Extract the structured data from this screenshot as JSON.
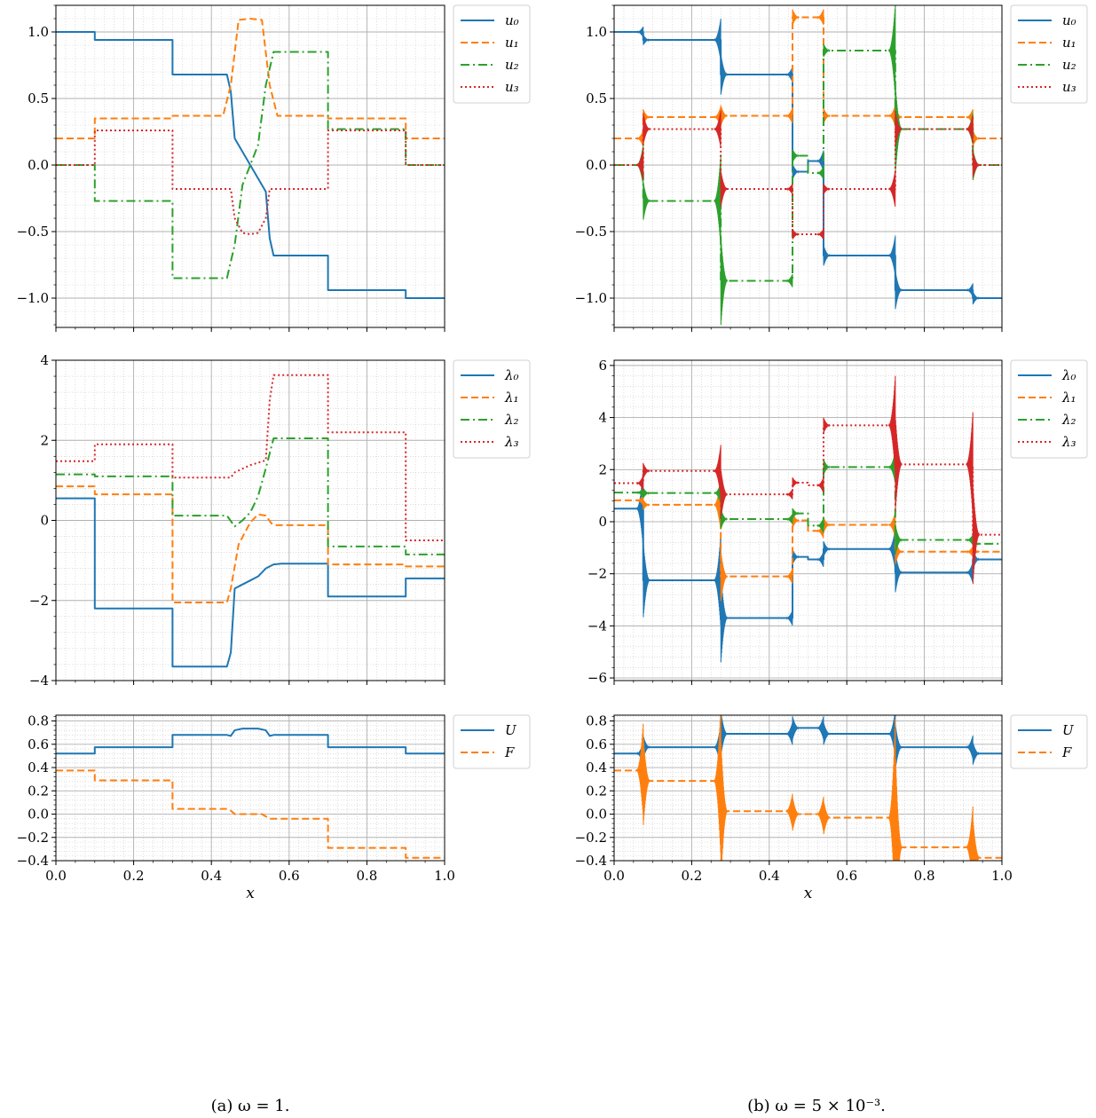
{
  "colors": {
    "c0": "#1f77b4",
    "c1": "#ff7f0e",
    "c2": "#2ca02c",
    "c3": "#d62728"
  },
  "captions": {
    "a": "(a) ω = 1.",
    "b": "(b) ω = 5 × 10⁻³."
  },
  "chart_data": [
    {
      "id": "a-u",
      "type": "line",
      "column": "a",
      "row": 0,
      "xlabel": "",
      "ylabel": "",
      "xlim": [
        0,
        1
      ],
      "ylim": [
        -1.22,
        1.2
      ],
      "yticks": [
        -1.0,
        -0.5,
        0.0,
        0.5,
        1.0
      ],
      "ytick_labels": [
        "−1.0",
        "−0.5",
        "0.0",
        "0.5",
        "1.0"
      ],
      "grid": true,
      "minor_grid": true,
      "legend": "outside-right",
      "series": [
        {
          "name": "u₀",
          "style": "solid",
          "color": "#1f77b4",
          "x": [
            0,
            0.1,
            0.1,
            0.3,
            0.3,
            0.44,
            0.45,
            0.46,
            0.48,
            0.5,
            0.52,
            0.54,
            0.55,
            0.56,
            0.7,
            0.7,
            0.9,
            0.9,
            1.0
          ],
          "y": [
            1.0,
            1.0,
            0.94,
            0.94,
            0.68,
            0.68,
            0.55,
            0.2,
            0.1,
            0.0,
            -0.1,
            -0.2,
            -0.55,
            -0.68,
            -0.68,
            -0.94,
            -0.94,
            -1.0,
            -1.0
          ]
        },
        {
          "name": "u₁",
          "style": "dashed",
          "color": "#ff7f0e",
          "x": [
            0,
            0.1,
            0.1,
            0.3,
            0.3,
            0.43,
            0.45,
            0.47,
            0.5,
            0.53,
            0.55,
            0.57,
            0.7,
            0.7,
            0.9,
            0.9,
            1.0
          ],
          "y": [
            0.2,
            0.2,
            0.35,
            0.35,
            0.37,
            0.37,
            0.6,
            1.09,
            1.1,
            1.09,
            0.6,
            0.37,
            0.37,
            0.35,
            0.35,
            0.2,
            0.2
          ]
        },
        {
          "name": "u₂",
          "style": "dashdot",
          "color": "#2ca02c",
          "x": [
            0,
            0.1,
            0.1,
            0.3,
            0.3,
            0.44,
            0.46,
            0.48,
            0.5,
            0.52,
            0.54,
            0.56,
            0.7,
            0.7,
            0.9,
            0.9,
            1.0
          ],
          "y": [
            0.0,
            0.0,
            -0.27,
            -0.27,
            -0.85,
            -0.85,
            -0.6,
            -0.15,
            0.0,
            0.15,
            0.6,
            0.85,
            0.85,
            0.27,
            0.27,
            0.0,
            0.0
          ]
        },
        {
          "name": "u₃",
          "style": "dotted",
          "color": "#d62728",
          "x": [
            0,
            0.1,
            0.1,
            0.3,
            0.3,
            0.45,
            0.46,
            0.48,
            0.5,
            0.52,
            0.54,
            0.55,
            0.7,
            0.7,
            0.9,
            0.9,
            1.0
          ],
          "y": [
            0.0,
            0.0,
            0.26,
            0.26,
            -0.18,
            -0.18,
            -0.4,
            -0.51,
            -0.52,
            -0.51,
            -0.4,
            -0.18,
            -0.18,
            0.26,
            0.26,
            0.0,
            0.0
          ]
        }
      ]
    },
    {
      "id": "a-lambda",
      "type": "line",
      "column": "a",
      "row": 1,
      "xlabel": "",
      "ylabel": "",
      "xlim": [
        0,
        1
      ],
      "ylim": [
        -4.0,
        4.0
      ],
      "yticks": [
        -4,
        -2,
        0,
        2,
        4
      ],
      "ytick_labels": [
        "−4",
        "−2",
        "0",
        "2",
        "4"
      ],
      "grid": true,
      "minor_grid": true,
      "legend": "outside-right",
      "series": [
        {
          "name": "λ₀",
          "style": "solid",
          "color": "#1f77b4",
          "x": [
            0,
            0.1,
            0.1,
            0.3,
            0.3,
            0.44,
            0.45,
            0.46,
            0.48,
            0.5,
            0.52,
            0.54,
            0.56,
            0.58,
            0.7,
            0.7,
            0.9,
            0.9,
            1.0
          ],
          "y": [
            0.55,
            0.55,
            -2.2,
            -2.2,
            -3.65,
            -3.65,
            -3.3,
            -1.7,
            -1.6,
            -1.5,
            -1.4,
            -1.2,
            -1.1,
            -1.08,
            -1.08,
            -1.9,
            -1.9,
            -1.45,
            -1.45
          ]
        },
        {
          "name": "λ₁",
          "style": "dashed",
          "color": "#ff7f0e",
          "x": [
            0,
            0.1,
            0.1,
            0.3,
            0.3,
            0.44,
            0.45,
            0.47,
            0.5,
            0.52,
            0.54,
            0.555,
            0.565,
            0.7,
            0.7,
            0.9,
            0.9,
            1.0
          ],
          "y": [
            0.85,
            0.85,
            0.65,
            0.65,
            -2.05,
            -2.05,
            -1.7,
            -0.6,
            -0.05,
            0.15,
            0.12,
            -0.08,
            -0.12,
            -0.12,
            -1.1,
            -1.1,
            -1.15,
            -1.15
          ]
        },
        {
          "name": "λ₂",
          "style": "dashdot",
          "color": "#2ca02c",
          "x": [
            0,
            0.1,
            0.1,
            0.3,
            0.3,
            0.44,
            0.46,
            0.48,
            0.5,
            0.52,
            0.54,
            0.56,
            0.7,
            0.7,
            0.9,
            0.9,
            1.0
          ],
          "y": [
            1.15,
            1.15,
            1.1,
            1.1,
            0.12,
            0.12,
            -0.15,
            0.0,
            0.2,
            0.6,
            1.3,
            2.05,
            2.05,
            -0.65,
            -0.65,
            -0.85,
            -0.85
          ]
        },
        {
          "name": "λ₃",
          "style": "dotted",
          "color": "#d62728",
          "x": [
            0,
            0.1,
            0.1,
            0.3,
            0.3,
            0.45,
            0.46,
            0.5,
            0.54,
            0.55,
            0.56,
            0.7,
            0.7,
            0.9,
            0.9,
            1.0
          ],
          "y": [
            1.48,
            1.48,
            1.9,
            1.9,
            1.07,
            1.07,
            1.2,
            1.38,
            1.5,
            3.0,
            3.63,
            3.63,
            2.2,
            2.2,
            -0.5,
            -0.5
          ]
        }
      ]
    },
    {
      "id": "a-UF",
      "type": "line",
      "column": "a",
      "row": 2,
      "xlabel": "x",
      "ylabel": "",
      "xlim": [
        0,
        1
      ],
      "ylim": [
        -0.4,
        0.85
      ],
      "yticks": [
        -0.4,
        -0.2,
        0.0,
        0.2,
        0.4,
        0.6,
        0.8
      ],
      "ytick_labels": [
        "−0.4",
        "−0.2",
        "0.0",
        "0.2",
        "0.4",
        "0.6",
        "0.8"
      ],
      "xticks": [
        0.0,
        0.2,
        0.4,
        0.6,
        0.8,
        1.0
      ],
      "xtick_labels": [
        "0.0",
        "0.2",
        "0.4",
        "0.6",
        "0.8",
        "1.0"
      ],
      "grid": true,
      "minor_grid": true,
      "legend": "outside-right",
      "series": [
        {
          "name": "U",
          "style": "solid",
          "color": "#1f77b4",
          "x": [
            0,
            0.1,
            0.1,
            0.3,
            0.3,
            0.44,
            0.45,
            0.46,
            0.48,
            0.52,
            0.54,
            0.55,
            0.56,
            0.7,
            0.7,
            0.9,
            0.9,
            1.0
          ],
          "y": [
            0.52,
            0.52,
            0.575,
            0.575,
            0.68,
            0.68,
            0.672,
            0.72,
            0.735,
            0.735,
            0.72,
            0.672,
            0.68,
            0.68,
            0.575,
            0.575,
            0.52,
            0.52
          ]
        },
        {
          "name": "F",
          "style": "dashed",
          "color": "#ff7f0e",
          "x": [
            0,
            0.1,
            0.1,
            0.3,
            0.3,
            0.44,
            0.45,
            0.46,
            0.53,
            0.54,
            0.55,
            0.7,
            0.7,
            0.9,
            0.9,
            1.0
          ],
          "y": [
            0.375,
            0.375,
            0.29,
            0.29,
            0.045,
            0.045,
            0.03,
            0.0,
            0.0,
            -0.02,
            -0.04,
            -0.04,
            -0.29,
            -0.29,
            -0.375,
            -0.375
          ]
        }
      ]
    },
    {
      "id": "b-u",
      "type": "line",
      "column": "b",
      "row": 0,
      "xlabel": "",
      "ylabel": "",
      "xlim": [
        0,
        1
      ],
      "ylim": [
        -1.22,
        1.2
      ],
      "yticks": [
        -1.0,
        -0.5,
        0.0,
        0.5,
        1.0
      ],
      "ytick_labels": [
        "−1.0",
        "−0.5",
        "0.0",
        "0.5",
        "1.0"
      ],
      "grid": true,
      "minor_grid": true,
      "legend": "outside-right",
      "jumps": [
        0.075,
        0.275,
        0.46,
        0.5,
        0.54,
        0.725,
        0.925
      ],
      "series": [
        {
          "name": "u₀",
          "style": "solid",
          "color": "#1f77b4",
          "steps": [
            1.0,
            0.94,
            0.68,
            -0.05,
            0.03,
            -0.68,
            -0.94,
            -1.0
          ],
          "spikes": [
            [
              0.075,
              0.04
            ],
            [
              0.275,
              0.16
            ],
            [
              0.46,
              0.06
            ],
            [
              0.54,
              0.08
            ],
            [
              0.725,
              0.15
            ],
            [
              0.925,
              0.05
            ]
          ]
        },
        {
          "name": "u₁",
          "style": "dashed",
          "color": "#ff7f0e",
          "steps": [
            0.2,
            0.36,
            0.37,
            1.11,
            1.11,
            0.37,
            0.36,
            0.2
          ],
          "spikes": [
            [
              0.075,
              0.06
            ],
            [
              0.275,
              0.08
            ],
            [
              0.46,
              0.06
            ],
            [
              0.54,
              0.06
            ],
            [
              0.725,
              0.08
            ],
            [
              0.925,
              0.06
            ]
          ]
        },
        {
          "name": "u₂",
          "style": "dashdot",
          "color": "#2ca02c",
          "steps": [
            0.0,
            -0.27,
            -0.87,
            0.07,
            -0.06,
            0.86,
            0.27,
            0.0
          ],
          "spikes": [
            [
              0.075,
              0.15
            ],
            [
              0.275,
              0.35
            ],
            [
              0.46,
              0.05
            ],
            [
              0.54,
              0.05
            ],
            [
              0.725,
              0.35
            ],
            [
              0.925,
              0.12
            ]
          ]
        },
        {
          "name": "u₃",
          "style": "dotted",
          "color": "#d62728",
          "steps": [
            0.0,
            0.27,
            -0.18,
            -0.52,
            -0.52,
            -0.18,
            0.27,
            0.0
          ],
          "spikes": [
            [
              0.075,
              0.12
            ],
            [
              0.275,
              0.14
            ],
            [
              0.46,
              0.04
            ],
            [
              0.54,
              0.04
            ],
            [
              0.725,
              0.14
            ],
            [
              0.925,
              0.1
            ]
          ]
        }
      ]
    },
    {
      "id": "b-lambda",
      "type": "line",
      "column": "b",
      "row": 1,
      "xlabel": "",
      "ylabel": "",
      "xlim": [
        0,
        1
      ],
      "ylim": [
        -6.1,
        6.2
      ],
      "yticks": [
        -6,
        -4,
        -2,
        0,
        2,
        4,
        6
      ],
      "ytick_labels": [
        "−6",
        "−4",
        "−2",
        "0",
        "2",
        "4",
        "6"
      ],
      "grid": true,
      "minor_grid": true,
      "legend": "outside-right",
      "jumps": [
        0.075,
        0.275,
        0.46,
        0.5,
        0.54,
        0.725,
        0.925
      ],
      "series": [
        {
          "name": "λ₀",
          "style": "solid",
          "color": "#1f77b4",
          "steps": [
            0.5,
            -2.25,
            -3.7,
            -1.35,
            -1.45,
            -1.05,
            -1.95,
            -1.45
          ],
          "spikes": [
            [
              0.075,
              1.5
            ],
            [
              0.275,
              1.8
            ],
            [
              0.46,
              0.3
            ],
            [
              0.54,
              0.3
            ],
            [
              0.725,
              0.8
            ],
            [
              0.925,
              0.4
            ]
          ]
        },
        {
          "name": "λ₁",
          "style": "dashed",
          "color": "#ff7f0e",
          "steps": [
            0.82,
            0.65,
            -2.1,
            0.05,
            -0.35,
            -0.12,
            -1.15,
            -1.15
          ],
          "spikes": [
            [
              0.075,
              0.2
            ],
            [
              0.275,
              1.0
            ],
            [
              0.46,
              0.3
            ],
            [
              0.54,
              0.3
            ],
            [
              0.725,
              0.5
            ],
            [
              0.925,
              0.2
            ]
          ]
        },
        {
          "name": "λ₂",
          "style": "dashdot",
          "color": "#2ca02c",
          "steps": [
            1.12,
            1.1,
            0.1,
            0.32,
            -0.15,
            2.1,
            -0.7,
            -0.85
          ],
          "spikes": [
            [
              0.075,
              0.2
            ],
            [
              0.275,
              0.4
            ],
            [
              0.46,
              0.2
            ],
            [
              0.54,
              0.3
            ],
            [
              0.725,
              0.6
            ],
            [
              0.925,
              0.2
            ]
          ]
        },
        {
          "name": "λ₃",
          "style": "dotted",
          "color": "#d62728",
          "steps": [
            1.48,
            1.95,
            1.05,
            1.5,
            1.4,
            3.7,
            2.2,
            -0.5
          ],
          "spikes": [
            [
              0.075,
              0.3
            ],
            [
              0.275,
              1.0
            ],
            [
              0.46,
              0.2
            ],
            [
              0.54,
              0.3
            ],
            [
              0.725,
              1.9
            ],
            [
              0.925,
              2.0
            ]
          ]
        }
      ]
    },
    {
      "id": "b-UF",
      "type": "line",
      "column": "b",
      "row": 2,
      "xlabel": "x",
      "ylabel": "",
      "xlim": [
        0,
        1
      ],
      "ylim": [
        -0.4,
        0.85
      ],
      "yticks": [
        -0.4,
        -0.2,
        0.0,
        0.2,
        0.4,
        0.6,
        0.8
      ],
      "ytick_labels": [
        "−0.4",
        "−0.2",
        "0.0",
        "0.2",
        "0.4",
        "0.6",
        "0.8"
      ],
      "xticks": [
        0.0,
        0.2,
        0.4,
        0.6,
        0.8,
        1.0
      ],
      "xtick_labels": [
        "0.0",
        "0.2",
        "0.4",
        "0.6",
        "0.8",
        "1.0"
      ],
      "grid": true,
      "minor_grid": true,
      "legend": "outside-right",
      "jumps": [
        0.075,
        0.275,
        0.46,
        0.5,
        0.54,
        0.725,
        0.925
      ],
      "series": [
        {
          "name": "U",
          "style": "solid",
          "color": "#1f77b4",
          "steps": [
            0.52,
            0.575,
            0.69,
            0.74,
            0.74,
            0.69,
            0.575,
            0.52
          ],
          "spikes": [
            [
              0.075,
              0.1
            ],
            [
              0.275,
              0.2
            ],
            [
              0.46,
              0.1
            ],
            [
              0.54,
              0.1
            ],
            [
              0.725,
              0.2
            ],
            [
              0.925,
              0.1
            ]
          ]
        },
        {
          "name": "F",
          "style": "dashed",
          "color": "#ff7f0e",
          "steps": [
            0.375,
            0.285,
            0.025,
            0.0,
            0.0,
            -0.03,
            -0.285,
            -0.375
          ],
          "spikes": [
            [
              0.075,
              0.4
            ],
            [
              0.275,
              0.65
            ],
            [
              0.46,
              0.15
            ],
            [
              0.54,
              0.15
            ],
            [
              0.725,
              0.85
            ],
            [
              0.925,
              0.35
            ]
          ]
        }
      ]
    }
  ]
}
